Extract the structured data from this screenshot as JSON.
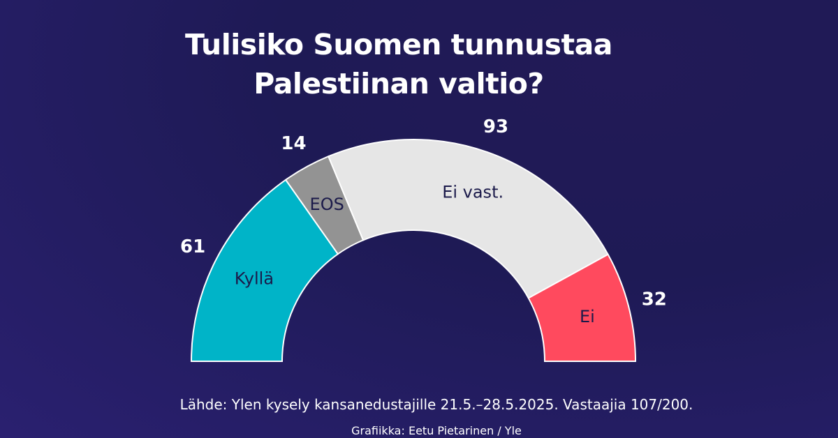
{
  "title_line1": "Tulisiko Suomen tunnustaa",
  "title_line2": "Palestiinan valtio?",
  "source": "Lähde: Ylen kysely kansanedustajille 21.5.–28.5.2025. Vastaajia 107/200.",
  "credit": "Grafiikka: Eetu Pietarinen / Yle",
  "chart_data": {
    "type": "pie",
    "shape": "half-donut",
    "title": "Tulisiko Suomen tunnustaa Palestiinan valtio?",
    "total": 200,
    "slices": [
      {
        "label": "Kyllä",
        "value": 61,
        "color": "#00b4c8"
      },
      {
        "label": "EOS",
        "value": 14,
        "color": "#939393"
      },
      {
        "label": "Ei vast.",
        "value": 93,
        "color": "#e6e6e6"
      },
      {
        "label": "Ei",
        "value": 32,
        "color": "#ff4a5e"
      }
    ],
    "label_color": "#1b1a4a",
    "value_color": "#ffffff"
  }
}
